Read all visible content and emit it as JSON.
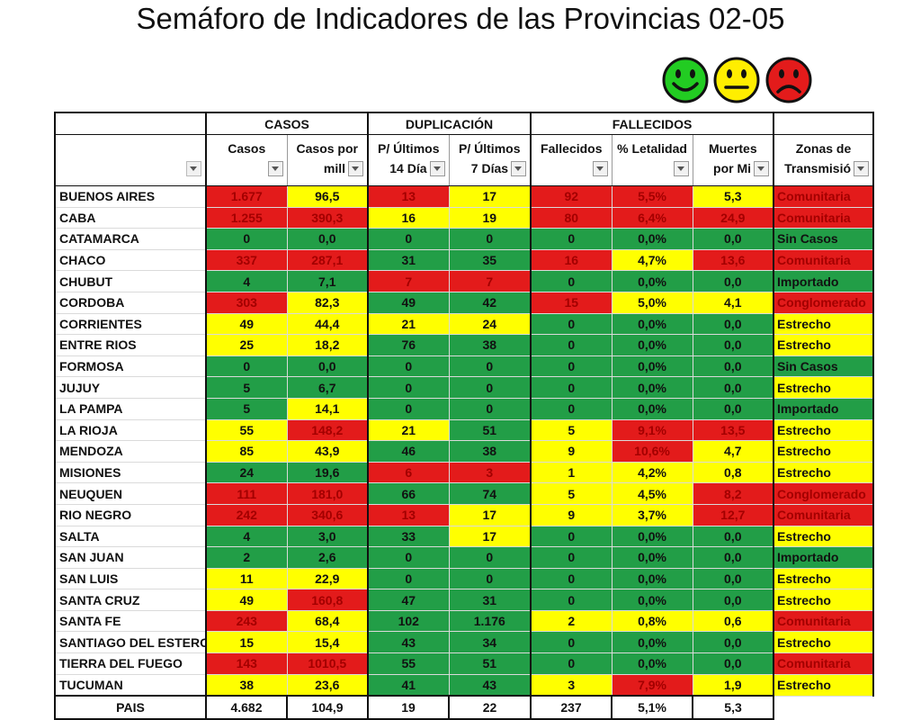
{
  "title": "Semáforo de Indicadores de las Provincias 02-05",
  "legend_icons": [
    {
      "name": "smiley-happy-icon",
      "color": "#22cc22"
    },
    {
      "name": "smiley-neutral-icon",
      "color": "#ffee00"
    },
    {
      "name": "smiley-sad-icon",
      "color": "#e31b1b"
    }
  ],
  "colors": {
    "red": "#e31b1b",
    "yellow": "#ffff00",
    "green": "#229e47"
  },
  "groups": [
    "CASOS",
    "DUPLICACIÓN",
    "FALLECIDOS"
  ],
  "columns": [
    {
      "line1": "",
      "line2": ""
    },
    {
      "line1": "Casos",
      "line2": ""
    },
    {
      "line1": "Casos por",
      "line2": "mill"
    },
    {
      "line1": "P/ Últimos",
      "line2": "14 Día"
    },
    {
      "line1": "P/ Últimos",
      "line2": "7 Días"
    },
    {
      "line1": "Fallecidos",
      "line2": ""
    },
    {
      "line1": "% Letalidad",
      "line2": ""
    },
    {
      "line1": "Muertes",
      "line2": "por Mi"
    },
    {
      "line1": "Zonas de",
      "line2": "Transmisió"
    }
  ],
  "chart_data": {
    "type": "table",
    "title": "Semáforo de Indicadores de las Provincias 02-05",
    "rows": [
      {
        "province": "BUENOS AIRES",
        "cells": [
          [
            "1.677",
            "r"
          ],
          [
            "96,5",
            "y"
          ],
          [
            "13",
            "r"
          ],
          [
            "17",
            "y"
          ],
          [
            "92",
            "r"
          ],
          [
            "5,5%",
            "r"
          ],
          [
            "5,3",
            "y"
          ],
          [
            "Comunitaria",
            "r"
          ]
        ]
      },
      {
        "province": "CABA",
        "cells": [
          [
            "1.255",
            "r"
          ],
          [
            "390,3",
            "r"
          ],
          [
            "16",
            "y"
          ],
          [
            "19",
            "y"
          ],
          [
            "80",
            "r"
          ],
          [
            "6,4%",
            "r"
          ],
          [
            "24,9",
            "r"
          ],
          [
            "Comunitaria",
            "r"
          ]
        ]
      },
      {
        "province": "CATAMARCA",
        "cells": [
          [
            "0",
            "g"
          ],
          [
            "0,0",
            "g"
          ],
          [
            "0",
            "g"
          ],
          [
            "0",
            "g"
          ],
          [
            "0",
            "g"
          ],
          [
            "0,0%",
            "g"
          ],
          [
            "0,0",
            "g"
          ],
          [
            "Sin Casos",
            "g"
          ]
        ]
      },
      {
        "province": "CHACO",
        "cells": [
          [
            "337",
            "r"
          ],
          [
            "287,1",
            "r"
          ],
          [
            "31",
            "g"
          ],
          [
            "35",
            "g"
          ],
          [
            "16",
            "r"
          ],
          [
            "4,7%",
            "y"
          ],
          [
            "13,6",
            "r"
          ],
          [
            "Comunitaria",
            "r"
          ]
        ]
      },
      {
        "province": "CHUBUT",
        "cells": [
          [
            "4",
            "g"
          ],
          [
            "7,1",
            "g"
          ],
          [
            "7",
            "r"
          ],
          [
            "7",
            "r"
          ],
          [
            "0",
            "g"
          ],
          [
            "0,0%",
            "g"
          ],
          [
            "0,0",
            "g"
          ],
          [
            "Importado",
            "g"
          ]
        ]
      },
      {
        "province": "CORDOBA",
        "cells": [
          [
            "303",
            "r"
          ],
          [
            "82,3",
            "y"
          ],
          [
            "49",
            "g"
          ],
          [
            "42",
            "g"
          ],
          [
            "15",
            "r"
          ],
          [
            "5,0%",
            "y"
          ],
          [
            "4,1",
            "y"
          ],
          [
            "Conglomerado",
            "r"
          ]
        ]
      },
      {
        "province": "CORRIENTES",
        "cells": [
          [
            "49",
            "y"
          ],
          [
            "44,4",
            "y"
          ],
          [
            "21",
            "y"
          ],
          [
            "24",
            "y"
          ],
          [
            "0",
            "g"
          ],
          [
            "0,0%",
            "g"
          ],
          [
            "0,0",
            "g"
          ],
          [
            "Estrecho",
            "y"
          ]
        ]
      },
      {
        "province": "ENTRE RIOS",
        "cells": [
          [
            "25",
            "y"
          ],
          [
            "18,2",
            "y"
          ],
          [
            "76",
            "g"
          ],
          [
            "38",
            "g"
          ],
          [
            "0",
            "g"
          ],
          [
            "0,0%",
            "g"
          ],
          [
            "0,0",
            "g"
          ],
          [
            "Estrecho",
            "y"
          ]
        ]
      },
      {
        "province": "FORMOSA",
        "cells": [
          [
            "0",
            "g"
          ],
          [
            "0,0",
            "g"
          ],
          [
            "0",
            "g"
          ],
          [
            "0",
            "g"
          ],
          [
            "0",
            "g"
          ],
          [
            "0,0%",
            "g"
          ],
          [
            "0,0",
            "g"
          ],
          [
            "Sin Casos",
            "g"
          ]
        ]
      },
      {
        "province": "JUJUY",
        "cells": [
          [
            "5",
            "g"
          ],
          [
            "6,7",
            "g"
          ],
          [
            "0",
            "g"
          ],
          [
            "0",
            "g"
          ],
          [
            "0",
            "g"
          ],
          [
            "0,0%",
            "g"
          ],
          [
            "0,0",
            "g"
          ],
          [
            "Estrecho",
            "y"
          ]
        ]
      },
      {
        "province": "LA PAMPA",
        "cells": [
          [
            "5",
            "g"
          ],
          [
            "14,1",
            "y"
          ],
          [
            "0",
            "g"
          ],
          [
            "0",
            "g"
          ],
          [
            "0",
            "g"
          ],
          [
            "0,0%",
            "g"
          ],
          [
            "0,0",
            "g"
          ],
          [
            "Importado",
            "g"
          ]
        ]
      },
      {
        "province": "LA RIOJA",
        "cells": [
          [
            "55",
            "y"
          ],
          [
            "148,2",
            "r"
          ],
          [
            "21",
            "y"
          ],
          [
            "51",
            "g"
          ],
          [
            "5",
            "y"
          ],
          [
            "9,1%",
            "r"
          ],
          [
            "13,5",
            "r"
          ],
          [
            "Estrecho",
            "y"
          ]
        ]
      },
      {
        "province": "MENDOZA",
        "cells": [
          [
            "85",
            "y"
          ],
          [
            "43,9",
            "y"
          ],
          [
            "46",
            "g"
          ],
          [
            "38",
            "g"
          ],
          [
            "9",
            "y"
          ],
          [
            "10,6%",
            "r"
          ],
          [
            "4,7",
            "y"
          ],
          [
            "Estrecho",
            "y"
          ]
        ]
      },
      {
        "province": "MISIONES",
        "cells": [
          [
            "24",
            "g"
          ],
          [
            "19,6",
            "g"
          ],
          [
            "6",
            "r"
          ],
          [
            "3",
            "r"
          ],
          [
            "1",
            "y"
          ],
          [
            "4,2%",
            "y"
          ],
          [
            "0,8",
            "y"
          ],
          [
            "Estrecho",
            "y"
          ]
        ]
      },
      {
        "province": "NEUQUEN",
        "cells": [
          [
            "111",
            "r"
          ],
          [
            "181,0",
            "r"
          ],
          [
            "66",
            "g"
          ],
          [
            "74",
            "g"
          ],
          [
            "5",
            "y"
          ],
          [
            "4,5%",
            "y"
          ],
          [
            "8,2",
            "r"
          ],
          [
            "Conglomerado",
            "r"
          ]
        ]
      },
      {
        "province": "RIO NEGRO",
        "cells": [
          [
            "242",
            "r"
          ],
          [
            "340,6",
            "r"
          ],
          [
            "13",
            "r"
          ],
          [
            "17",
            "y"
          ],
          [
            "9",
            "y"
          ],
          [
            "3,7%",
            "y"
          ],
          [
            "12,7",
            "r"
          ],
          [
            "Comunitaria",
            "r"
          ]
        ]
      },
      {
        "province": "SALTA",
        "cells": [
          [
            "4",
            "g"
          ],
          [
            "3,0",
            "g"
          ],
          [
            "33",
            "g"
          ],
          [
            "17",
            "y"
          ],
          [
            "0",
            "g"
          ],
          [
            "0,0%",
            "g"
          ],
          [
            "0,0",
            "g"
          ],
          [
            "Estrecho",
            "y"
          ]
        ]
      },
      {
        "province": "SAN JUAN",
        "cells": [
          [
            "2",
            "g"
          ],
          [
            "2,6",
            "g"
          ],
          [
            "0",
            "g"
          ],
          [
            "0",
            "g"
          ],
          [
            "0",
            "g"
          ],
          [
            "0,0%",
            "g"
          ],
          [
            "0,0",
            "g"
          ],
          [
            "Importado",
            "g"
          ]
        ]
      },
      {
        "province": "SAN LUIS",
        "cells": [
          [
            "11",
            "y"
          ],
          [
            "22,9",
            "y"
          ],
          [
            "0",
            "g"
          ],
          [
            "0",
            "g"
          ],
          [
            "0",
            "g"
          ],
          [
            "0,0%",
            "g"
          ],
          [
            "0,0",
            "g"
          ],
          [
            "Estrecho",
            "y"
          ]
        ]
      },
      {
        "province": "SANTA CRUZ",
        "cells": [
          [
            "49",
            "y"
          ],
          [
            "160,8",
            "r"
          ],
          [
            "47",
            "g"
          ],
          [
            "31",
            "g"
          ],
          [
            "0",
            "g"
          ],
          [
            "0,0%",
            "g"
          ],
          [
            "0,0",
            "g"
          ],
          [
            "Estrecho",
            "y"
          ]
        ]
      },
      {
        "province": "SANTA FE",
        "cells": [
          [
            "243",
            "r"
          ],
          [
            "68,4",
            "y"
          ],
          [
            "102",
            "g"
          ],
          [
            "1.176",
            "g"
          ],
          [
            "2",
            "y"
          ],
          [
            "0,8%",
            "y"
          ],
          [
            "0,6",
            "y"
          ],
          [
            "Comunitaria",
            "r"
          ]
        ]
      },
      {
        "province": "SANTIAGO DEL ESTERO",
        "cells": [
          [
            "15",
            "y"
          ],
          [
            "15,4",
            "y"
          ],
          [
            "43",
            "g"
          ],
          [
            "34",
            "g"
          ],
          [
            "0",
            "g"
          ],
          [
            "0,0%",
            "g"
          ],
          [
            "0,0",
            "g"
          ],
          [
            "Estrecho",
            "y"
          ]
        ]
      },
      {
        "province": "TIERRA DEL FUEGO",
        "cells": [
          [
            "143",
            "r"
          ],
          [
            "1010,5",
            "r"
          ],
          [
            "55",
            "g"
          ],
          [
            "51",
            "g"
          ],
          [
            "0",
            "g"
          ],
          [
            "0,0%",
            "g"
          ],
          [
            "0,0",
            "g"
          ],
          [
            "Comunitaria",
            "r"
          ]
        ]
      },
      {
        "province": "TUCUMAN",
        "cells": [
          [
            "38",
            "y"
          ],
          [
            "23,6",
            "y"
          ],
          [
            "41",
            "g"
          ],
          [
            "43",
            "g"
          ],
          [
            "3",
            "y"
          ],
          [
            "7,9%",
            "r"
          ],
          [
            "1,9",
            "y"
          ],
          [
            "Estrecho",
            "y"
          ]
        ]
      }
    ],
    "total": {
      "province": "PAIS",
      "values": [
        "4.682",
        "104,9",
        "19",
        "22",
        "237",
        "5,1%",
        "5,3"
      ]
    }
  }
}
